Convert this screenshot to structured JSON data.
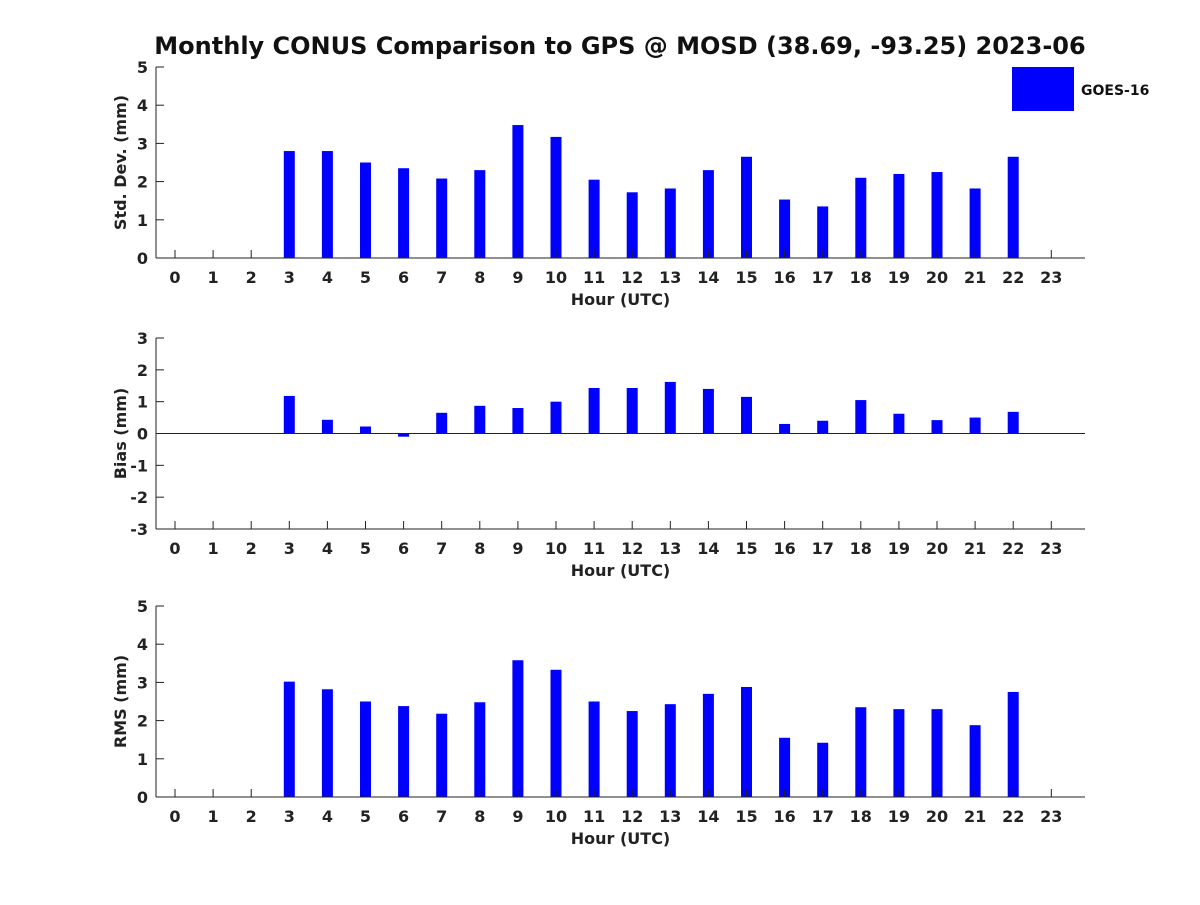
{
  "title": "Monthly CONUS Comparison to GPS @ MOSD (38.69, -93.25) 2023-06",
  "legend": {
    "label": "GOES-16",
    "color": "#0000ff",
    "placement": "top-right"
  },
  "chart_data": [
    {
      "type": "bar",
      "xlabel": "Hour (UTC)",
      "ylabel": "Std. Dev. (mm)",
      "ylim": [
        0,
        5
      ],
      "yticks": [
        0,
        1,
        2,
        3,
        4,
        5
      ],
      "categories": [
        "0",
        "1",
        "2",
        "3",
        "4",
        "5",
        "6",
        "7",
        "8",
        "9",
        "10",
        "11",
        "12",
        "13",
        "14",
        "15",
        "16",
        "17",
        "18",
        "19",
        "20",
        "21",
        "22",
        "23"
      ],
      "series": [
        {
          "name": "GOES-16",
          "values": [
            null,
            null,
            null,
            2.8,
            2.8,
            2.5,
            2.35,
            2.08,
            2.3,
            3.48,
            3.17,
            2.05,
            1.72,
            1.82,
            2.3,
            2.65,
            1.53,
            1.35,
            2.1,
            2.2,
            2.25,
            1.82,
            2.65,
            null
          ]
        }
      ]
    },
    {
      "type": "bar",
      "xlabel": "Hour (UTC)",
      "ylabel": "Bias (mm)",
      "ylim": [
        -3,
        3
      ],
      "yticks": [
        -3,
        -2,
        -1,
        0,
        1,
        2,
        3
      ],
      "categories": [
        "0",
        "1",
        "2",
        "3",
        "4",
        "5",
        "6",
        "7",
        "8",
        "9",
        "10",
        "11",
        "12",
        "13",
        "14",
        "15",
        "16",
        "17",
        "18",
        "19",
        "20",
        "21",
        "22",
        "23"
      ],
      "series": [
        {
          "name": "GOES-16",
          "values": [
            null,
            null,
            null,
            1.18,
            0.43,
            0.22,
            -0.1,
            0.65,
            0.87,
            0.8,
            1.0,
            1.43,
            1.43,
            1.62,
            1.4,
            1.15,
            0.3,
            0.4,
            1.05,
            0.62,
            0.42,
            0.5,
            0.68,
            null
          ]
        }
      ]
    },
    {
      "type": "bar",
      "xlabel": "Hour (UTC)",
      "ylabel": "RMS (mm)",
      "ylim": [
        0,
        5
      ],
      "yticks": [
        0,
        1,
        2,
        3,
        4,
        5
      ],
      "categories": [
        "0",
        "1",
        "2",
        "3",
        "4",
        "5",
        "6",
        "7",
        "8",
        "9",
        "10",
        "11",
        "12",
        "13",
        "14",
        "15",
        "16",
        "17",
        "18",
        "19",
        "20",
        "21",
        "22",
        "23"
      ],
      "series": [
        {
          "name": "GOES-16",
          "values": [
            null,
            null,
            null,
            3.02,
            2.82,
            2.5,
            2.38,
            2.18,
            2.48,
            3.58,
            3.33,
            2.5,
            2.25,
            2.43,
            2.7,
            2.88,
            1.55,
            1.42,
            2.35,
            2.3,
            2.3,
            1.88,
            2.75,
            null
          ]
        }
      ]
    }
  ]
}
